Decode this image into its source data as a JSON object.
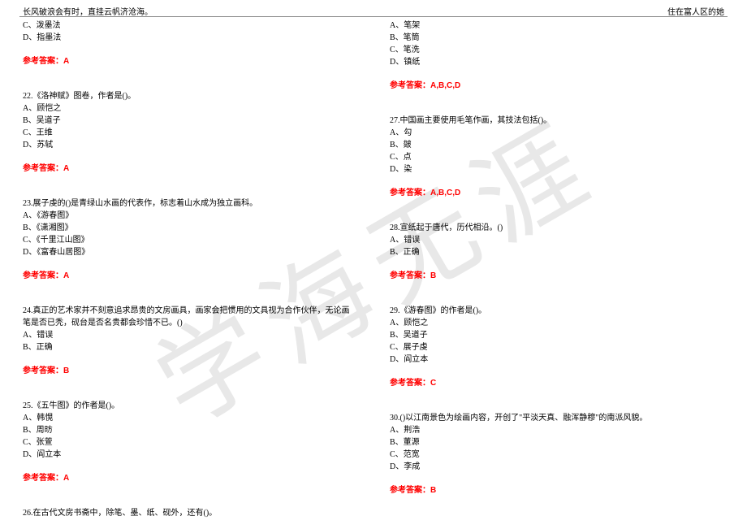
{
  "header": {
    "left": "长风破浪会有时，直挂云帆济沧海。",
    "right": "住在富人区的她"
  },
  "watermark": "学海无涯",
  "colors": {
    "text": "#000000",
    "answer": "#ff0000",
    "watermark": "#e8e8e8",
    "background": "#ffffff",
    "rule": "#888888"
  },
  "left_column": {
    "q21_tail": {
      "options": [
        "C、泼墨法",
        "D、指墨法"
      ],
      "answer": "参考答案：A"
    },
    "q22": {
      "stem": "22.《洛神赋》图卷，作者是()。",
      "options": [
        "A、顾恺之",
        "B、吴道子",
        "C、王维",
        "D、苏轼"
      ],
      "answer": "参考答案：A"
    },
    "q23": {
      "stem": "23.展子虔的()是青绿山水画的代表作，标志着山水成为独立画科。",
      "options": [
        "A、《游春图》",
        "B、《潇湘图》",
        "C、《千里江山图》",
        "D、《富春山居图》"
      ],
      "answer": "参考答案：A"
    },
    "q24": {
      "stem": "24.真正的艺术家并不刻意追求昂贵的文房画具，画家会把惯用的文具视为合作伙伴，无论画笔是否已秃，砚台是否名贵都会珍惜不已。()",
      "options": [
        "A、错误",
        "B、正确"
      ],
      "answer": "参考答案：B"
    },
    "q25": {
      "stem": "25.《五牛图》的作者是()。",
      "options": [
        "A、韩愰",
        "B、周昉",
        "C、张萱",
        "D、阎立本"
      ],
      "answer": "参考答案：A"
    },
    "q26": {
      "stem": "26.在古代文房书斋中，除笔、墨、纸、砚外，还有()。"
    }
  },
  "right_column": {
    "q26_tail": {
      "options": [
        "A、笔架",
        "B、笔筒",
        "C、笔洗",
        "D、镇纸"
      ],
      "answer": "参考答案：A,B,C,D"
    },
    "q27": {
      "stem": "27.中国画主要使用毛笔作画，其技法包括()。",
      "options": [
        "A、勾",
        "B、皴",
        "C、点",
        "D、染"
      ],
      "answer": "参考答案：A,B,C,D"
    },
    "q28": {
      "stem": "28.宣纸起于唐代，历代相沿。()",
      "options": [
        "A、错误",
        "B、正确"
      ],
      "answer": "参考答案：B"
    },
    "q29": {
      "stem": "29.《游春图》的作者是()。",
      "options": [
        "A、顾恺之",
        "B、吴道子",
        "C、展子虔",
        "D、阎立本"
      ],
      "answer": "参考答案：C"
    },
    "q30": {
      "stem": "30.()以江南景色为绘画内容，开创了\"平淡天真、融浑静穆\"的南派风貌。",
      "options": [
        "A、荆浩",
        "B、董源",
        "C、范宽",
        "D、李成"
      ],
      "answer": "参考答案：B"
    }
  }
}
